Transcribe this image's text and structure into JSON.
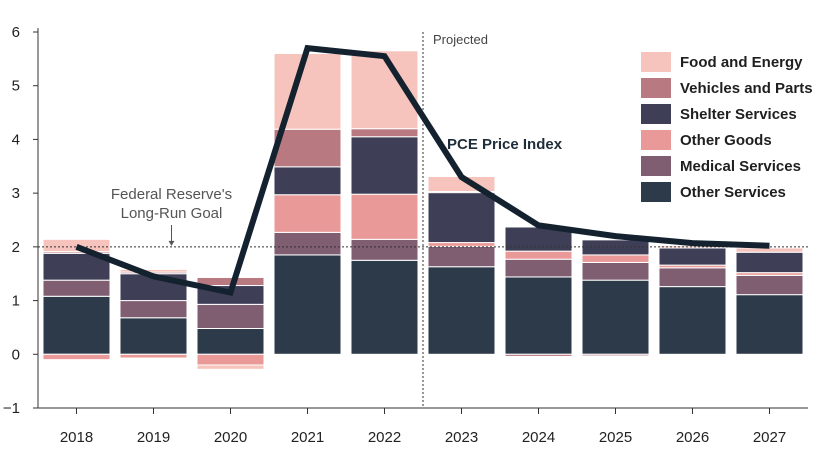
{
  "chart_data": {
    "type": "bar",
    "stacked": true,
    "categories": [
      "2018",
      "2019",
      "2020",
      "2021",
      "2022",
      "2023",
      "2024",
      "2025",
      "2026",
      "2027"
    ],
    "ylim": [
      -1,
      6
    ],
    "yticks": [
      -1,
      0,
      1,
      2,
      3,
      4,
      5,
      6
    ],
    "series": [
      {
        "name": "Other Services",
        "color": "#2d3a4a",
        "values": [
          1.08,
          0.68,
          0.48,
          1.85,
          1.75,
          1.63,
          1.44,
          1.38,
          1.26,
          1.11
        ]
      },
      {
        "name": "Medical Services",
        "color": "#7f5e72",
        "values": [
          0.3,
          0.32,
          0.45,
          0.42,
          0.39,
          0.38,
          0.33,
          0.33,
          0.35,
          0.36
        ]
      },
      {
        "name": "Other Goods",
        "color": "#e99a98",
        "values": [
          -0.1,
          -0.07,
          -0.2,
          0.7,
          0.84,
          0.07,
          0.15,
          0.14,
          0.05,
          0.05
        ]
      },
      {
        "name": "Shelter Services",
        "color": "#3e3f57",
        "values": [
          0.5,
          0.5,
          0.35,
          0.52,
          1.07,
          0.93,
          0.45,
          0.28,
          0.32,
          0.38
        ]
      },
      {
        "name": "Vehicles and Parts",
        "color": "#b87a80",
        "values": [
          0.03,
          0.03,
          0.15,
          0.7,
          0.15,
          0.02,
          -0.04,
          -0.03,
          0.0,
          0.0
        ]
      },
      {
        "name": "Food and Energy",
        "color": "#f6c4bc",
        "values": [
          0.23,
          0.05,
          -0.08,
          1.41,
          1.45,
          0.28,
          0.0,
          0.0,
          0.04,
          0.08
        ]
      }
    ],
    "line": {
      "name": "PCE Price Index",
      "color": "#14222f",
      "values": [
        2.0,
        1.45,
        1.15,
        5.7,
        5.55,
        3.3,
        2.4,
        2.2,
        2.07,
        2.02
      ]
    },
    "reference_line": {
      "value": 2.0,
      "label_line1": "Federal Reserve's",
      "label_line2": "Long-Run Goal"
    },
    "projected_label": "Projected",
    "projection_after": "2022",
    "legend_position": "top-right"
  }
}
